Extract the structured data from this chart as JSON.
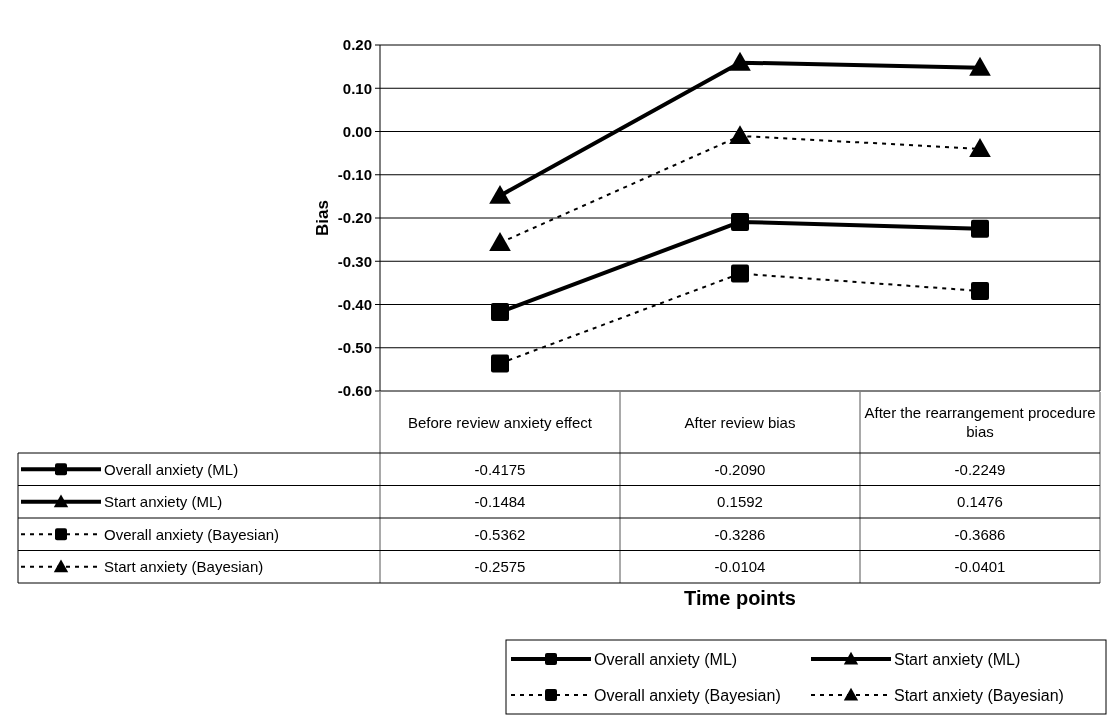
{
  "chart_data": {
    "type": "line",
    "annotations": [
      "Time points"
    ],
    "ylabel": "Bias",
    "categories": [
      "Before review anxiety effect",
      "After review bias",
      "After the rearrangement procedure bias"
    ],
    "series": [
      {
        "name": "Overall anxiety (ML)",
        "color": "#000000",
        "marker": "square",
        "line_style": "solid",
        "values": [
          -0.4175,
          -0.209,
          -0.2249
        ],
        "value_labels": [
          "-0.4175",
          "-0.2090",
          "-0.2249"
        ]
      },
      {
        "name": "Start anxiety (ML)",
        "color": "#000000",
        "marker": "triangle",
        "line_style": "solid",
        "values": [
          -0.1484,
          0.1592,
          0.1476
        ],
        "value_labels": [
          "-0.1484",
          "0.1592",
          "0.1476"
        ]
      },
      {
        "name": "Overall anxiety (Bayesian)",
        "color": "#000000",
        "marker": "square",
        "line_style": "dashed",
        "values": [
          -0.5362,
          -0.3286,
          -0.3686
        ],
        "value_labels": [
          "-0.5362",
          "-0.3286",
          "-0.3686"
        ]
      },
      {
        "name": "Start anxiety (Bayesian)",
        "color": "#000000",
        "marker": "triangle",
        "line_style": "dashed",
        "values": [
          -0.2575,
          -0.0104,
          -0.0401
        ],
        "value_labels": [
          "-0.2575",
          "-0.0104",
          "-0.0401"
        ]
      }
    ],
    "ylim": [
      -0.6,
      0.2
    ],
    "yticks": [
      {
        "value": 0.2,
        "label": "0.20"
      },
      {
        "value": 0.1,
        "label": "0.10"
      },
      {
        "value": 0,
        "label": "0.00"
      },
      {
        "value": -0.1,
        "label": "-0.10"
      },
      {
        "value": -0.2,
        "label": "-0.20"
      },
      {
        "value": -0.3,
        "label": "-0.30"
      },
      {
        "value": -0.4,
        "label": "-0.40"
      },
      {
        "value": -0.5,
        "label": "-0.50"
      },
      {
        "value": -0.6,
        "label": "-0.60"
      }
    ],
    "grid": "y",
    "legend": "bottom"
  }
}
